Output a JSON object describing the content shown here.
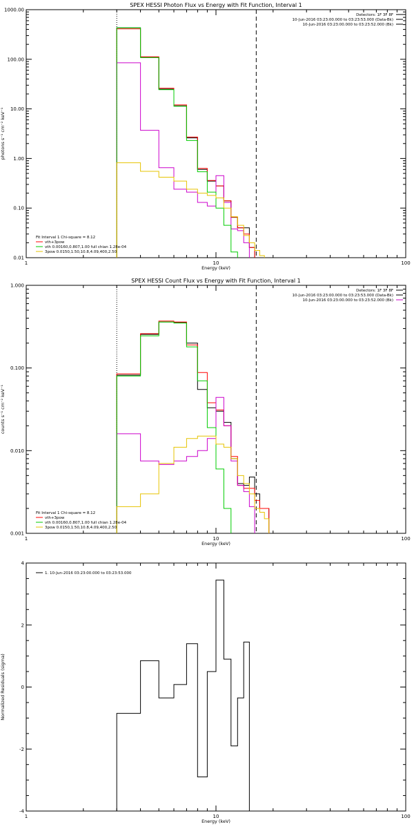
{
  "chart_data": [
    {
      "type": "line",
      "title": "SPEX HESSI Photon Flux vs Energy with Fit Function, Interval 1",
      "xlabel": "Energy (keV)",
      "ylabel": "photons s⁻¹ cm⁻² keV⁻¹",
      "xscale": "log",
      "yscale": "log",
      "xlim": [
        1,
        100
      ],
      "ylim": [
        0.01,
        1000
      ],
      "xtick_labels": [
        "1",
        "10",
        "100"
      ],
      "ytick_values": [
        0.01,
        0.1,
        1,
        10,
        100,
        1000
      ],
      "ytick_labels": [
        "0.01",
        "0.10",
        "1.00",
        "10.00",
        "100.00",
        "1000.00"
      ],
      "x_edges": [
        3.0,
        4.0,
        5.0,
        6.0,
        7.0,
        8.0,
        9.0,
        10.0,
        11.0,
        12.0,
        13.0,
        14.0,
        15.0,
        16.0,
        17.0,
        18.0,
        19.0,
        20.0
      ],
      "vlines": [
        {
          "x": 3.0,
          "style": "dotted"
        },
        {
          "x": 16.3,
          "style": "dashed"
        }
      ],
      "header_lines": [
        {
          "text": "Detectors: 1F 3F 8F",
          "color": "#000000"
        },
        {
          "text": "10-Jun-2016 03:23:00.000 to 03:23:53.000 (Data-Bk)",
          "color": "#000000"
        },
        {
          "text": "10-Jun-2016 03:23:00.000 to 03:23:52.000 (Bk)",
          "color": "#000000"
        }
      ],
      "legend_lines": [
        {
          "text": "Fit Interval 1   Chi-square = 8.12",
          "color": null
        },
        {
          "text": "vth+3pow",
          "color": "#ff0000"
        },
        {
          "text": "vth 0.00160,0.807,1.00  full chian 1.28e-04",
          "color": "#00cc00"
        },
        {
          "text": "3pow 0.0150,1.50,10.8,4.09,400,2.50",
          "color": "#e6c300"
        }
      ],
      "series": [
        {
          "role": "data",
          "color": "#000000",
          "values": [
            430,
            110,
            25,
            11.5,
            2.6,
            0.6,
            0.35,
            0.28,
            0.14,
            0.065,
            0.04,
            0.04,
            0.016,
            0.008,
            0.006,
            0.006,
            0.006
          ]
        },
        {
          "role": "total",
          "color": "#ff0000",
          "values": [
            410,
            112,
            26,
            12,
            2.7,
            0.63,
            0.36,
            0.28,
            0.14,
            0.066,
            0.04,
            0.03,
            0.016,
            0.008,
            0.006,
            0.006,
            0.006
          ]
        },
        {
          "role": "background",
          "color": "#cc00cc",
          "values": [
            85,
            3.7,
            0.65,
            0.24,
            0.21,
            0.13,
            0.11,
            0.45,
            0.13,
            0.038,
            0.035,
            0.02,
            0.008,
            0.006,
            0.006,
            0.006,
            0.006
          ]
        },
        {
          "role": "thermal",
          "color": "#00cc00",
          "values": [
            430,
            108,
            24.5,
            11.3,
            2.3,
            0.54,
            0.21,
            0.1,
            0.045,
            0.013,
            0.006,
            0.006,
            0.006,
            0.006,
            0.006,
            0.006,
            0.006
          ]
        },
        {
          "role": "power-law",
          "color": "#e6c300",
          "values": [
            0.82,
            0.55,
            0.42,
            0.35,
            0.24,
            0.2,
            0.18,
            0.16,
            0.1,
            0.067,
            0.045,
            0.028,
            0.02,
            0.014,
            0.011,
            0.006,
            0.006
          ]
        }
      ]
    },
    {
      "type": "line",
      "title": "SPEX HESSI Count Flux vs Energy with Fit Function, Interval 1",
      "xlabel": "Energy (keV)",
      "ylabel": "counts s⁻¹ cm⁻² keV⁻¹",
      "xscale": "log",
      "yscale": "log",
      "xlim": [
        1,
        100
      ],
      "ylim": [
        0.001,
        1
      ],
      "xtick_labels": [
        "1",
        "10",
        "100"
      ],
      "ytick_values": [
        0.001,
        0.01,
        0.1,
        1
      ],
      "ytick_labels": [
        "0.001",
        "0.010",
        "0.100",
        "1.000"
      ],
      "x_edges": [
        3.0,
        4.0,
        5.0,
        6.0,
        7.0,
        8.0,
        9.0,
        10.0,
        11.0,
        12.0,
        13.0,
        14.0,
        15.0,
        16.0,
        17.0,
        18.0,
        19.0,
        20.0
      ],
      "vlines": [
        {
          "x": 3.0,
          "style": "dotted"
        },
        {
          "x": 16.3,
          "style": "dashed"
        }
      ],
      "header_lines": [
        {
          "text": "Detectors: 1F 3F 8F",
          "color": "#000000"
        },
        {
          "text": "10-Jun-2016 03:23:00.000 to 03:23:53.000 (Data-Bk)",
          "color": "#000000"
        },
        {
          "text": "10-Jun-2016 03:23:00.000 to 03:23:52.000 (Bk)",
          "color": "#cc00cc"
        }
      ],
      "legend_lines": [
        {
          "text": "Fit Interval 1   Chi-square = 8.12",
          "color": null
        },
        {
          "text": "vth+3pow",
          "color": "#ff0000"
        },
        {
          "text": "vth 0.00160,0.807,1.00  full chian 1.28e-04",
          "color": "#00cc00"
        },
        {
          "text": "3pow 0.0150,1.50,10.8,4.09,400,2.50",
          "color": "#e6c300"
        }
      ],
      "series": [
        {
          "role": "data",
          "color": "#000000",
          "values": [
            0.082,
            0.255,
            0.36,
            0.355,
            0.2,
            0.055,
            0.033,
            0.03,
            0.022,
            0.008,
            0.004,
            0.0038,
            0.0048,
            0.003,
            0.002,
            0.002,
            0.0008
          ]
        },
        {
          "role": "total",
          "color": "#ff0000",
          "values": [
            0.085,
            0.26,
            0.37,
            0.36,
            0.19,
            0.088,
            0.038,
            0.031,
            0.02,
            0.0085,
            0.0038,
            0.0035,
            0.0035,
            0.0025,
            0.002,
            0.002,
            0.0008
          ]
        },
        {
          "role": "background",
          "color": "#cc00cc",
          "values": [
            0.016,
            0.0075,
            0.0068,
            0.0075,
            0.0085,
            0.01,
            0.014,
            0.044,
            0.02,
            0.0075,
            0.0038,
            0.0032,
            0.0021,
            0.0008,
            0.0008,
            0.0008,
            0.0008
          ]
        },
        {
          "role": "thermal",
          "color": "#00cc00",
          "values": [
            0.08,
            0.245,
            0.36,
            0.35,
            0.18,
            0.07,
            0.019,
            0.006,
            0.002,
            0.0008,
            0.0008,
            0.0008,
            0.0008,
            0.0008,
            0.0008,
            0.0008,
            0.0008
          ]
        },
        {
          "role": "power-law",
          "color": "#e6c300",
          "values": [
            0.0021,
            0.003,
            0.007,
            0.011,
            0.014,
            0.015,
            0.015,
            0.012,
            0.011,
            0.008,
            0.005,
            0.004,
            0.003,
            0.002,
            0.0018,
            0.0015,
            0.0008
          ]
        }
      ]
    },
    {
      "type": "line",
      "title": "",
      "xlabel": "Energy (keV)",
      "ylabel": "Normalized Residuals (sigma)",
      "xscale": "log",
      "yscale": "linear",
      "xlim": [
        1,
        100
      ],
      "ylim": [
        -4,
        4
      ],
      "xtick_labels": [
        "1",
        "10",
        "100"
      ],
      "ytick_values": [
        -4,
        -2,
        0,
        2,
        4
      ],
      "ytick_labels": [
        "-4",
        "-2",
        "0",
        "2",
        "4"
      ],
      "x_edges": [
        3.0,
        4.0,
        5.0,
        6.0,
        7.0,
        8.0,
        9.0,
        10.0,
        11.0,
        12.0,
        13.0,
        14.0,
        15.0,
        16.0
      ],
      "legend_lines": [
        {
          "text": "1. 10-Jun-2016 03:23:00.000 to 03:23:53.000",
          "color": "#000000"
        }
      ],
      "series": [
        {
          "role": "residuals",
          "color": "#000000",
          "values": [
            -0.85,
            0.85,
            -0.35,
            0.08,
            1.4,
            -2.9,
            0.5,
            3.45,
            0.9,
            -1.9,
            -0.35,
            1.45,
            -4.0
          ]
        }
      ]
    }
  ]
}
